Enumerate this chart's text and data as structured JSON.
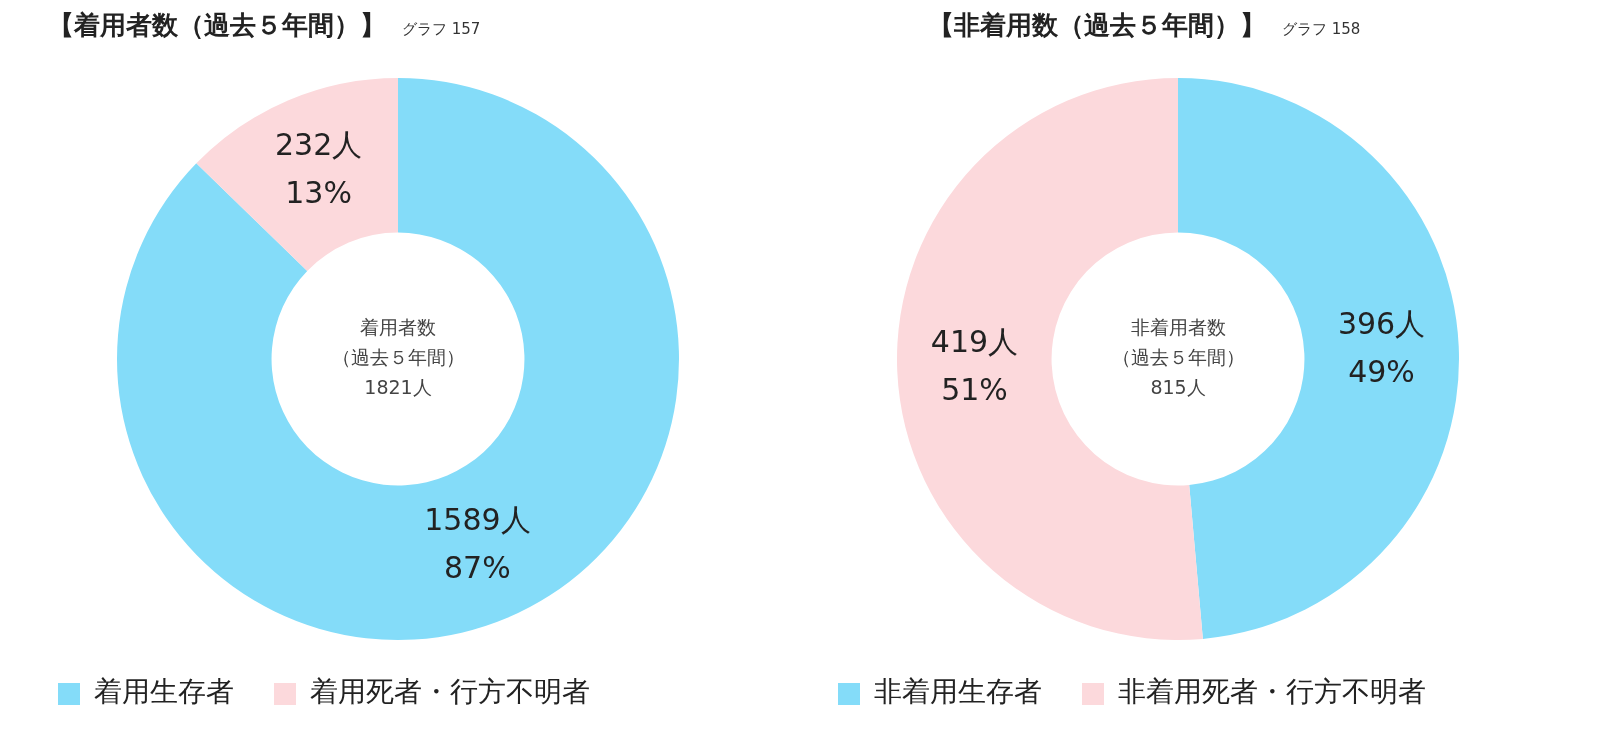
{
  "chart_data": [
    {
      "type": "donut",
      "title": "【着用者数（過去５年間）】",
      "subtitle": "グラフ 157",
      "categories": [
        "着用生存者",
        "着用死者・行方不明者"
      ],
      "values": [
        1589,
        232
      ],
      "colors": [
        "#84dcf9",
        "#fcd9dc"
      ],
      "value_labels": [
        "1589人\n87%",
        "232人\n13%"
      ],
      "annotations": [
        "着用者数",
        "（過去５年間）",
        "1821人"
      ],
      "legend": "bottom"
    },
    {
      "type": "donut",
      "title": "【非着用数（過去５年間）】",
      "subtitle": "グラフ 158",
      "categories": [
        "非着用生存者",
        "非着用死者・行方不明者"
      ],
      "values": [
        396,
        419
      ],
      "colors": [
        "#84dcf9",
        "#fcd9dc"
      ],
      "value_labels": [
        "396人\n49%",
        "419人\n51%"
      ],
      "annotations": [
        "非着用者数",
        "（過去５年間）",
        "815人"
      ],
      "legend": "bottom"
    }
  ]
}
